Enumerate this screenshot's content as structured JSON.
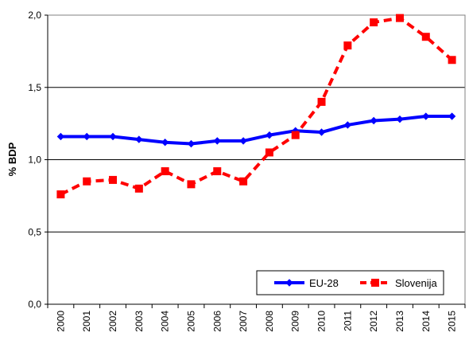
{
  "chart_data": {
    "type": "line",
    "title": "",
    "xlabel": "",
    "ylabel": "% BDP",
    "x": [
      "2000",
      "2001",
      "2002",
      "2003",
      "2004",
      "2005",
      "2006",
      "2007",
      "2008",
      "2009",
      "2010",
      "2011",
      "2012",
      "2013",
      "2014",
      "2015"
    ],
    "ylim": [
      0,
      2
    ],
    "yticks": [
      0,
      0.5,
      1,
      1.5,
      2
    ],
    "ytick_labels": [
      "0,0",
      "0,5",
      "1,0",
      "1,5",
      "2,0"
    ],
    "grid": "horizontal",
    "legend_position": "bottom-right",
    "series": [
      {
        "name": "EU-28",
        "color": "#0000ff",
        "style": "solid",
        "marker": "diamond",
        "values": [
          1.16,
          1.16,
          1.16,
          1.14,
          1.12,
          1.11,
          1.13,
          1.13,
          1.17,
          1.2,
          1.19,
          1.24,
          1.27,
          1.28,
          1.3,
          1.3
        ]
      },
      {
        "name": "Slovenija",
        "color": "#ff0000",
        "style": "dashed",
        "marker": "square",
        "values": [
          0.76,
          0.85,
          0.86,
          0.8,
          0.92,
          0.83,
          0.92,
          0.85,
          1.05,
          1.17,
          1.4,
          1.79,
          1.95,
          1.98,
          1.85,
          1.69
        ]
      }
    ]
  }
}
